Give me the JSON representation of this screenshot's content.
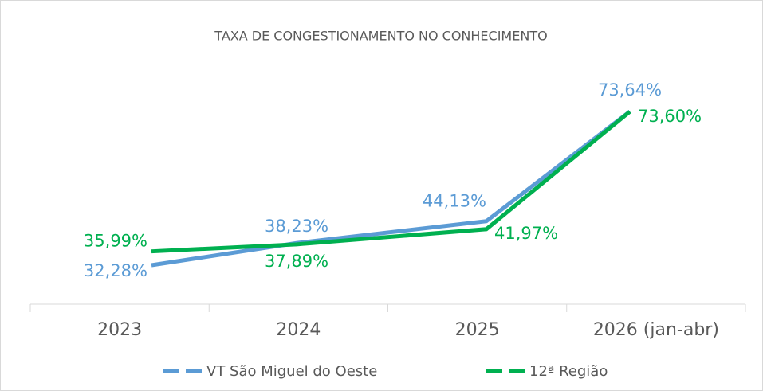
{
  "chart_data": {
    "type": "line",
    "title": "TAXA DE CONGESTIONAMENTO NO CONHECIMENTO",
    "categories": [
      "2023",
      "2024",
      "2025",
      "2026 (jan-abr)"
    ],
    "series": [
      {
        "name": "VT São Miguel do Oeste",
        "color": "#5b9bd5",
        "values": [
          32.28,
          38.23,
          44.13,
          73.64
        ],
        "value_labels": [
          "32,28%",
          "38,23%",
          "44,13%",
          "73,64%"
        ]
      },
      {
        "name": "12ª Região",
        "color": "#00b050",
        "values": [
          35.99,
          37.89,
          41.97,
          73.6
        ],
        "value_labels": [
          "35,99%",
          "37,89%",
          "41,97%",
          "73,60%"
        ]
      }
    ]
  }
}
